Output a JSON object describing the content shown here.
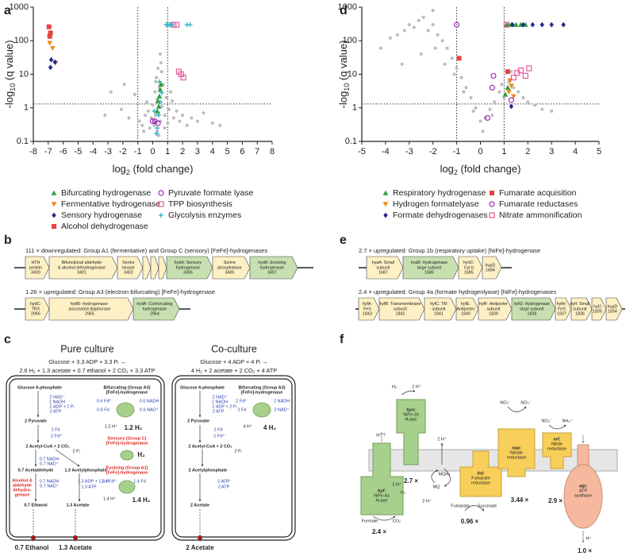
{
  "panel_labels": [
    "a",
    "b",
    "c",
    "d",
    "e",
    "f"
  ],
  "chart_data": [
    {
      "type": "scatter",
      "xlabel": {
        "main": "log",
        "sub": "2",
        "rest": " (fold change)"
      },
      "ylabel": {
        "main": "-log",
        "sub": "10",
        "rest": " (q value)"
      },
      "xlim": [
        -8,
        8
      ],
      "ylim": [
        0.1,
        1000
      ],
      "log_y": true,
      "xticks": [
        -8,
        -7,
        -6,
        -5,
        -4,
        -3,
        -2,
        -1,
        0,
        1,
        2,
        3,
        4,
        5,
        6,
        7,
        8
      ],
      "yticks": [
        0.1,
        1,
        10,
        100,
        1000
      ],
      "thresholds": {
        "x": [
          -1,
          1
        ],
        "y": 1.3
      },
      "series": [
        {
          "color": "#bdbdbd",
          "marker": "dot",
          "x": [
            -2.1,
            -1.6,
            -1.2,
            -0.9,
            -0.7,
            -0.5,
            -0.4,
            -0.3,
            -0.2,
            -0.1,
            0,
            0.1,
            0.15,
            0.2,
            0.25,
            0.3,
            0.35,
            0.4,
            0.45,
            0.5,
            0.55,
            0.6,
            0.7,
            0.8,
            0.9,
            1.0,
            1.1,
            1.2,
            1.4,
            1.6,
            1.8,
            2.0,
            2.3,
            2.6,
            3.0,
            3.4,
            4.0,
            4.5,
            -3.2,
            -2.8,
            0.3,
            0.4,
            0.5,
            0.6,
            0.2,
            0.1,
            -0.6,
            1.3,
            -1.9,
            0.8
          ],
          "values": [
            0.9,
            0.5,
            2.5,
            0.4,
            0.3,
            0.6,
            1.5,
            0.8,
            0.25,
            0.5,
            1.2,
            0.3,
            3,
            0.6,
            8,
            1.8,
            15,
            0.7,
            4,
            0.4,
            22,
            1.1,
            5,
            0.6,
            2,
            0.35,
            0.9,
            3,
            0.5,
            0.8,
            0.4,
            0.6,
            0.3,
            0.5,
            0.4,
            0.7,
            0.35,
            0.3,
            0.6,
            3,
            0.2,
            0.15,
            40,
            12,
            6,
            0.4,
            0.2,
            1.6,
            5,
            0.25
          ]
        },
        {
          "name": "Bifurcating hydrogenase",
          "color": "#2e9e3a",
          "marker": "triangle-up",
          "x": [
            0.35,
            0.45,
            0.5,
            0.4,
            0.55,
            0.3
          ],
          "values": [
            1.6,
            2.2,
            3.5,
            1.1,
            5,
            0.8
          ]
        },
        {
          "name": "Fermentative hydrogenase",
          "color": "#f08a1c",
          "marker": "triangle-down",
          "x": [
            -6.9,
            -6.7,
            -6.5
          ],
          "values": [
            85,
            60,
            22
          ]
        },
        {
          "name": "Sensory hydrogenase",
          "color": "#1f2a8c",
          "marker": "diamond",
          "x": [
            -6.8,
            -6.55,
            -6.85
          ],
          "values": [
            27,
            23,
            16
          ]
        },
        {
          "name": "Alcohol dehydrogenase",
          "color": "#e5443e",
          "marker": "square",
          "x": [
            -6.95,
            -6.85,
            -6.9
          ],
          "values": [
            260,
            170,
            135
          ]
        },
        {
          "name": "Pyruvate formate lyase",
          "color": "#9c2ab5",
          "marker": "circle-open",
          "x": [
            0.0,
            0.15,
            0.35
          ],
          "values": [
            0.4,
            0.4,
            0.35
          ]
        },
        {
          "name": "TPP biosynthesis",
          "color": "#e45a9c",
          "marker": "square-open",
          "x": [
            1.4,
            1.6,
            1.75,
            1.9,
            2.05
          ],
          "values": [
            300,
            300,
            12,
            10,
            8
          ]
        },
        {
          "name": "Glycolysis enzymes",
          "color": "#2bb0c4",
          "marker": "plus",
          "x": [
            0.25,
            0.4,
            0.5,
            0.6,
            0.3,
            0.45,
            0.1,
            0.9,
            1.0,
            1.1,
            1.2,
            1.3,
            2.3,
            2.5
          ],
          "values": [
            0.17,
            0.6,
            1.5,
            2.8,
            0.25,
            6,
            0.8,
            300,
            300,
            300,
            300,
            300,
            300,
            300
          ]
        }
      ]
    },
    {
      "type": "scatter",
      "xlabel": {
        "main": "log",
        "sub": "2",
        "rest": " (fold change)"
      },
      "ylabel": {
        "main": "-log",
        "sub": "10",
        "rest": " (q value)"
      },
      "xlim": [
        -5,
        5
      ],
      "ylim": [
        0.1,
        1000
      ],
      "log_y": true,
      "xticks": [
        -5,
        -4,
        -3,
        -2,
        -1,
        0,
        1,
        2,
        3,
        4,
        5
      ],
      "yticks": [
        0.1,
        1,
        10,
        100,
        1000
      ],
      "thresholds": {
        "x": [
          -1,
          1
        ],
        "y": 1.3
      },
      "series": [
        {
          "color": "#bdbdbd",
          "marker": "dot",
          "x": [
            -4.2,
            -3.8,
            -3.5,
            -3.2,
            -3.0,
            -2.8,
            -2.6,
            -2.4,
            -2.2,
            -2.0,
            -1.8,
            -1.6,
            -1.4,
            -1.2,
            -1.0,
            -0.8,
            -0.6,
            -0.4,
            -0.2,
            0,
            0.2,
            0.4,
            0.6,
            0.8,
            1.0,
            1.2,
            1.4,
            1.6,
            1.8,
            2.0,
            2.3,
            2.6,
            3.0,
            -2.5,
            -1.9,
            -1.5,
            -1.1,
            -0.7,
            -0.3,
            0.1,
            0.5,
            0.9,
            1.3,
            -3.3,
            -2.0
          ],
          "values": [
            60,
            120,
            150,
            200,
            300,
            250,
            400,
            500,
            200,
            300,
            150,
            100,
            60,
            30,
            15,
            8,
            4,
            2,
            1,
            0.4,
            0.5,
            0.9,
            1.5,
            3,
            2,
            6,
            4,
            3,
            2,
            1.5,
            1.2,
            0.9,
            0.8,
            40,
            60,
            20,
            10,
            3,
            0.8,
            0.2,
            0.6,
            5,
            12,
            20,
            800
          ]
        },
        {
          "name": "Respiratory hydrogenase",
          "color": "#2e9e3a",
          "marker": "triangle-up",
          "x": [
            1.1,
            1.2,
            1.3,
            1.5,
            1.7,
            1.9,
            1.05,
            1.15
          ],
          "values": [
            300,
            300,
            300,
            300,
            300,
            300,
            2.5,
            4
          ]
        },
        {
          "name": "Hydrogen formatelyase",
          "color": "#f08a1c",
          "marker": "triangle-down",
          "x": [
            1.2,
            1.3,
            1.25,
            1.4
          ],
          "values": [
            3,
            4.5,
            6.5,
            2.2
          ]
        },
        {
          "name": "Formate dehydrogenases",
          "color": "#1f2a8c",
          "marker": "diamond",
          "x": [
            1.35,
            1.8,
            2.2,
            2.6,
            3.0,
            3.5,
            1.3
          ],
          "values": [
            300,
            300,
            300,
            300,
            300,
            300,
            1.1
          ]
        },
        {
          "name": "Fumarate acquisition",
          "color": "#e5443e",
          "marker": "square",
          "x": [
            -0.9,
            1.15
          ],
          "values": [
            30,
            12
          ]
        },
        {
          "name": "Fumarate reductases",
          "color": "#9c2ab5",
          "marker": "circle-open",
          "x": [
            -1.0,
            0.3,
            0.5,
            0.55,
            1.3
          ],
          "values": [
            300,
            0.5,
            4,
            9,
            1.7
          ]
        },
        {
          "name": "Nitrate ammonification",
          "color": "#e45a9c",
          "marker": "square-open",
          "x": [
            1.1,
            1.4,
            1.55,
            1.7,
            1.9,
            2.05
          ],
          "values": [
            300,
            8,
            11,
            13,
            9,
            15
          ]
        }
      ]
    }
  ],
  "panel_b": {
    "operons": [
      {
        "title": "111 × downregulated: Group A1 (fermentative) and Group C (sensory) [FeFe]-hydrogenases",
        "genes": [
          {
            "lines": [
              "HTH",
              "protein",
              "3400"
            ],
            "color": "#fdf0c4"
          },
          {
            "lines": [
              "Bifunctional aldehyde",
              "& alcohol dehydrogenase",
              "3401"
            ],
            "color": "#fdf0c4"
          },
          {
            "lines": [
              "Serine",
              "kinase",
              "3402"
            ],
            "color": "#fdf0c4"
          },
          {
            "lines": [],
            "color": "#fdf0c4"
          },
          {
            "lines": [],
            "color": "#fdf0c4"
          },
          {
            "lines": [],
            "color": "#fdf0c4"
          },
          {
            "lines": [
              "hydA: Sensory",
              "hydrogenase",
              "3405"
            ],
            "color": "#c8e0b0"
          },
          {
            "lines": [
              "Serine",
              "phosphatase",
              "3406"
            ],
            "color": "#fdf0c4"
          },
          {
            "lines": [
              "hydA: Evolving",
              "hydrogenase",
              "3407"
            ],
            "color": "#c8e0b0"
          }
        ]
      },
      {
        "title": "1.26 × upregulated: Group A3 (electron-bifurcating) [FeFe]-hydrogenase",
        "genes": [
          {
            "lines": [
              "hydC:",
              "TRX",
              "2966"
            ],
            "color": "#fdf0c4"
          },
          {
            "lines": [
              "hydB: Hydrogenase-",
              "associated diaphorase",
              "2965"
            ],
            "color": "#fdf0c4"
          },
          {
            "lines": [
              "hydA: Confurcating",
              "hydrogenase",
              "2964"
            ],
            "color": "#c8e0b0"
          }
        ]
      }
    ]
  },
  "panel_e": {
    "operons": [
      {
        "title": "2.7 × upregulated: Group 1b (respiratory uptake) [NiFe]-hydrogenase",
        "genes": [
          {
            "lines": [
              "hyaA: Small",
              "subunit",
              "1687"
            ],
            "color": "#fdf0c4"
          },
          {
            "lines": [
              "hyaB: Hydrogenase",
              "large subunit",
              "1686"
            ],
            "color": "#c8e0b0"
          },
          {
            "lines": [
              "hynC:",
              "Cyt b",
              "1685"
            ],
            "color": "#fdf0c4"
          },
          {
            "lines": [
              "hupD",
              "1684"
            ],
            "color": "#fdf0c4"
          }
        ]
      },
      {
        "title": "2.4 × upregulated: Group 4a (formate hydrogenlyase) [NiFe]-hydrogenases",
        "genes": [
          {
            "lines": [
              "hyfA:",
              "FeS",
              "1843"
            ],
            "color": "#fdf0c4"
          },
          {
            "lines": [
              "hyfB: Transmembrane",
              "subunit",
              "1842"
            ],
            "color": "#fdf0c4"
          },
          {
            "lines": [
              "hyfC: TM",
              "subunit",
              "1841"
            ],
            "color": "#fdf0c4"
          },
          {
            "lines": [
              "hyfE:",
              "Antiporter",
              "1840"
            ],
            "color": "#fdf0c4"
          },
          {
            "lines": [
              "hyfF: Antiporter",
              "subunit",
              "1839"
            ],
            "color": "#fdf0c4"
          },
          {
            "lines": [
              "hyfG: Hydrogenase",
              "large subunit",
              "1838"
            ],
            "color": "#c8e0b0"
          },
          {
            "lines": [
              "hyfH:",
              "FeS",
              "1837"
            ],
            "color": "#fdf0c4"
          },
          {
            "lines": [
              "hyfI: Small",
              "subunit",
              "1836"
            ],
            "color": "#fdf0c4"
          },
          {
            "lines": [
              "hyfJ",
              "1835"
            ],
            "color": "#fdf0c4"
          },
          {
            "lines": [
              "hupD",
              "1834"
            ],
            "color": "#fdf0c4"
          }
        ]
      }
    ]
  },
  "panel_c": {
    "cultures": [
      {
        "title": "Pure culture",
        "equation": [
          "Glucose + 3.3 ADP + 3.3 Pᵢ →",
          "2.6 H₂ + 1.3 acetate + 0.7 ethanol + 2 CO₂ + 3.3 ATP"
        ],
        "labels": [
          "Glucose 6-phosphate",
          "2 NAD⁺",
          "2 NADH",
          "2 ADP + 2 Pᵢ",
          "2 ATP",
          "2 Pyruvate",
          "2 Fd",
          "2 Fd²⁻",
          "2 Acetyl-CoA + 2 CO₂",
          "2 Pᵢ",
          "0.7 NADH",
          "0.7 NAD⁺",
          "0.7 Acetaldehyde",
          "1.3 Acetylphosphate",
          "Alcohol &",
          "aldehyde",
          "dehydro-",
          "genase",
          "0.7 NADH",
          "0.7 NAD⁺",
          "1.3 ADP + 1.3 Pᵢ",
          "1.3 ATP",
          "0.7 Ethanol",
          "1.3 Acetate",
          "Bifurcating (Group A3)",
          "[FeFe]-hydrogenase",
          "0.6 Fd²⁻",
          "0.6 NADH",
          "0.6 Fd",
          "0.6 NAD⁺",
          "1.2 H⁺",
          "1.2 H₂",
          "Sensory (Group C)",
          "[FeFe]-hydrogenase",
          "H₂",
          "Evolving (Group A1)",
          "[FeFe]-hydrogenase",
          "1.4 Fd²⁻",
          "1.4 Fd",
          "1.4 H⁺",
          "1.4 H₂"
        ],
        "outputs": [
          "0.7 Ethanol",
          "1.3 Acetate"
        ]
      },
      {
        "title": "Co-culture",
        "equation": [
          "Glucose + 4 ADP + 4 Pᵢ →",
          "4 H₂ + 2 acetate + 2 CO₂ + 4 ATP"
        ],
        "labels": [
          "Glucose 6-phosphate",
          "2 NAD⁺",
          "2 NADH",
          "2 ADP + 2 Pᵢ",
          "2 ATP",
          "2 Pyruvate",
          "2 Fd",
          "2 Fd²⁻",
          "2 Acetyl-CoA + 2 CO₂",
          "2 Pᵢ",
          "2 Acetylphosphate",
          "2 ADP",
          "2 ATP",
          "2 Acetate",
          "Bifurcating (Group A3)",
          "[FeFe]-hydrogenase",
          "2 Fd²⁻",
          "2 NADH",
          "2 Fd",
          "2 NAD⁺",
          "4 H⁺",
          "4 H₂"
        ],
        "outputs": [
          "2 Acetate"
        ]
      }
    ]
  },
  "panel_f": {
    "labels": [
      "hyf:",
      "NiFe-4a",
      "H₂ase",
      "H⁺ ?",
      "2 H⁺",
      "H₂",
      "Formate",
      "CO₂",
      "2.4 ×",
      "hyn:",
      "NiFe-1b",
      "H₂ase",
      "H₂",
      "2 H⁺",
      "2.7 ×",
      "2 H⁺",
      "MQH₂",
      "MQ",
      "2 H⁺",
      "frd:",
      "Fumarate",
      "reductase",
      "Fumarate",
      "Succinate",
      "0.96 ×",
      "nap:",
      "Nitrate",
      "reductase",
      "NO₃⁻",
      "NO₂⁻",
      "3.44 ×",
      "nrf:",
      "Nitrite",
      "reductase",
      "NO₂⁻",
      "NH₄⁺",
      "2.9 ×",
      "atp:",
      "ATP",
      "synthase",
      "H⁺",
      "1.0 ×"
    ]
  }
}
